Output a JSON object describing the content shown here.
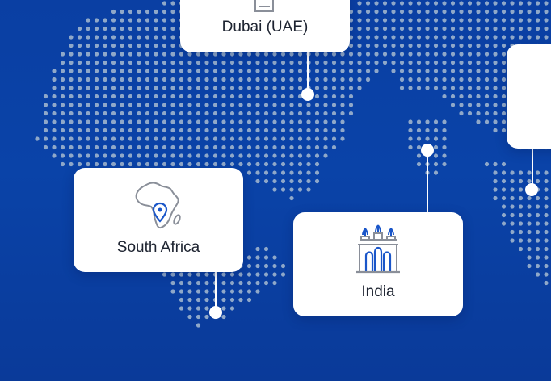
{
  "map": {
    "background_color": "#0a40a4",
    "dot_color": "#8fa8c9",
    "pin_color": "#ffffff"
  },
  "locations": [
    {
      "label": "Dubai (UAE)",
      "icon": "burj-al-arab-icon"
    },
    {
      "label": "South Africa",
      "icon": "africa-map-pin-icon"
    },
    {
      "label": "India",
      "icon": "gateway-of-india-icon"
    },
    {
      "label": "",
      "icon": ""
    }
  ]
}
